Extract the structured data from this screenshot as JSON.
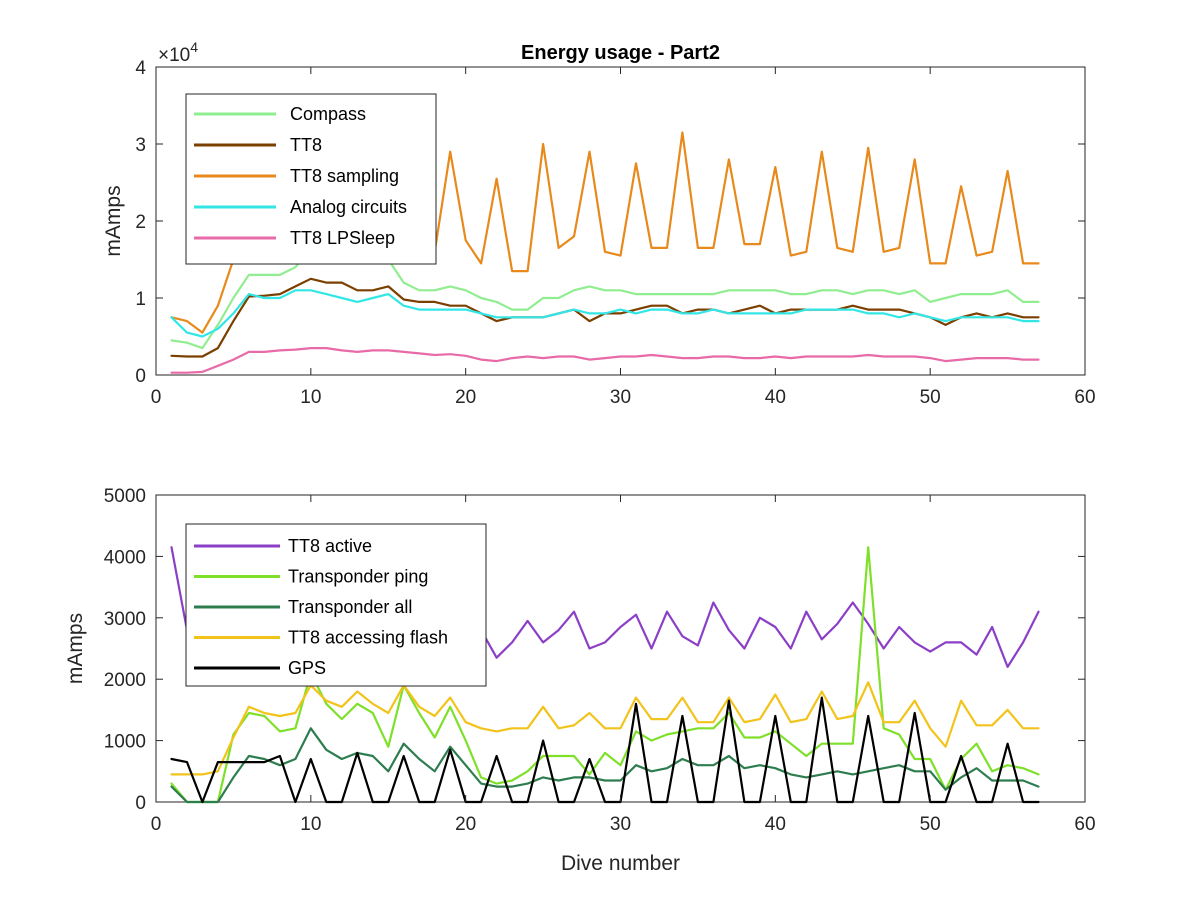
{
  "chart_data": [
    {
      "type": "line",
      "title": "Energy usage - Part2",
      "xlabel": "",
      "ylabel": "mAmps",
      "xlim": [
        0,
        60
      ],
      "ylim": [
        0,
        40000
      ],
      "x_ticks": [
        0,
        10,
        20,
        30,
        40,
        50,
        60
      ],
      "y_ticks": [
        0,
        10000,
        20000,
        30000,
        40000
      ],
      "y_tick_labels": [
        "0",
        "1",
        "2",
        "3",
        "4"
      ],
      "y_exponent_label": "×10",
      "y_exponent_power": "4",
      "legend_position": "top-left",
      "x": [
        1,
        2,
        3,
        4,
        5,
        6,
        7,
        8,
        9,
        10,
        11,
        12,
        13,
        14,
        15,
        16,
        17,
        18,
        19,
        20,
        21,
        22,
        23,
        24,
        25,
        26,
        27,
        28,
        29,
        30,
        31,
        32,
        33,
        34,
        35,
        36,
        37,
        38,
        39,
        40,
        41,
        42,
        43,
        44,
        45,
        46,
        47,
        48,
        49,
        50,
        51,
        52,
        53,
        54,
        55,
        56,
        57
      ],
      "series": [
        {
          "name": "Compass",
          "color": "#90ee90",
          "values": [
            4500,
            4200,
            3500,
            6500,
            10000,
            13000,
            13000,
            13000,
            14000,
            16500,
            15000,
            14500,
            15000,
            14500,
            15000,
            12000,
            11000,
            11000,
            11500,
            11000,
            10000,
            9500,
            8500,
            8500,
            10000,
            10000,
            11000,
            11500,
            11000,
            11000,
            10500,
            10500,
            10500,
            10500,
            10500,
            10500,
            11000,
            11000,
            11000,
            11000,
            10500,
            10500,
            11000,
            11000,
            10500,
            11000,
            11000,
            10500,
            11000,
            9500,
            10000,
            10500,
            10500,
            10500,
            11000,
            9500,
            9500
          ]
        },
        {
          "name": "TT8",
          "color": "#7b3f00",
          "values": [
            2500,
            2400,
            2400,
            3500,
            7000,
            10200,
            10300,
            10500,
            11500,
            12500,
            12000,
            12000,
            11000,
            11000,
            11500,
            9800,
            9500,
            9500,
            9000,
            9000,
            8000,
            7000,
            7500,
            7500,
            7500,
            8000,
            8500,
            7000,
            8000,
            8000,
            8500,
            9000,
            9000,
            8000,
            8500,
            8500,
            8000,
            8500,
            9000,
            8000,
            8500,
            8500,
            8500,
            8500,
            9000,
            8500,
            8500,
            8500,
            8000,
            7500,
            6500,
            7500,
            8000,
            7500,
            8000,
            7500,
            7500
          ]
        },
        {
          "name": "TT8 sampling",
          "color": "#e8891c",
          "values": [
            7500,
            7000,
            5500,
            9000,
            15000,
            19000,
            20500,
            21000,
            18500,
            20500,
            26000,
            22000,
            20500,
            24500,
            21000,
            23500,
            17000,
            16000,
            29000,
            17500,
            14500,
            25500,
            13500,
            13500,
            30000,
            16500,
            18000,
            29000,
            16000,
            15500,
            27500,
            16500,
            16500,
            31500,
            16500,
            16500,
            28000,
            17000,
            17000,
            27000,
            15500,
            16000,
            29000,
            16500,
            16000,
            29500,
            16000,
            16500,
            28000,
            14500,
            14500,
            24500,
            15500,
            16000,
            26500,
            14500,
            14500
          ]
        },
        {
          "name": "Analog circuits",
          "color": "#33e6e6",
          "values": [
            7500,
            5500,
            5000,
            6000,
            8000,
            10500,
            10000,
            10000,
            11000,
            11000,
            10500,
            10000,
            9500,
            10000,
            10500,
            9000,
            8500,
            8500,
            8500,
            8500,
            8000,
            7500,
            7500,
            7500,
            7500,
            8000,
            8500,
            8000,
            8000,
            8500,
            8000,
            8500,
            8500,
            8000,
            8000,
            8500,
            8000,
            8000,
            8000,
            8000,
            8000,
            8500,
            8500,
            8500,
            8500,
            8000,
            8000,
            7500,
            8000,
            7500,
            7000,
            7500,
            7500,
            7500,
            7500,
            7000,
            7000
          ]
        },
        {
          "name": "TT8 LPSleep",
          "color": "#e86aa8",
          "values": [
            300,
            300,
            400,
            1200,
            2000,
            3000,
            3000,
            3200,
            3300,
            3500,
            3500,
            3200,
            3000,
            3200,
            3200,
            3000,
            2800,
            2600,
            2700,
            2500,
            2000,
            1800,
            2200,
            2400,
            2200,
            2400,
            2400,
            2000,
            2200,
            2400,
            2400,
            2600,
            2400,
            2200,
            2200,
            2400,
            2400,
            2200,
            2200,
            2400,
            2200,
            2400,
            2400,
            2400,
            2400,
            2600,
            2400,
            2400,
            2400,
            2200,
            1800,
            2000,
            2200,
            2200,
            2200,
            2000,
            2000
          ]
        }
      ]
    },
    {
      "type": "line",
      "title": "",
      "xlabel": "Dive number",
      "ylabel": "mAmps",
      "xlim": [
        0,
        60
      ],
      "ylim": [
        0,
        5000
      ],
      "x_ticks": [
        0,
        10,
        20,
        30,
        40,
        50,
        60
      ],
      "y_ticks": [
        0,
        1000,
        2000,
        3000,
        4000,
        5000
      ],
      "y_tick_labels": [
        "0",
        "1000",
        "2000",
        "3000",
        "4000",
        "5000"
      ],
      "legend_position": "top-left",
      "x": [
        1,
        2,
        3,
        4,
        5,
        6,
        7,
        8,
        9,
        10,
        11,
        12,
        13,
        14,
        15,
        16,
        17,
        18,
        19,
        20,
        21,
        22,
        23,
        24,
        25,
        26,
        27,
        28,
        29,
        30,
        31,
        32,
        33,
        34,
        35,
        36,
        37,
        38,
        39,
        40,
        41,
        42,
        43,
        44,
        45,
        46,
        47,
        48,
        49,
        50,
        51,
        52,
        53,
        54,
        55,
        56,
        57
      ],
      "series": [
        {
          "name": "TT8 active",
          "color": "#8b3fc7",
          "values": [
            4150,
            2800,
            2800,
            2700,
            2700,
            2800,
            2800,
            2700,
            2800,
            2900,
            2800,
            2800,
            3000,
            2900,
            2800,
            3000,
            2800,
            2700,
            2800,
            2900,
            2800,
            2350,
            2600,
            2950,
            2600,
            2800,
            3100,
            2500,
            2600,
            2850,
            3050,
            2500,
            3100,
            2700,
            2550,
            3250,
            2800,
            2500,
            3000,
            2850,
            2500,
            3100,
            2650,
            2900,
            3250,
            2900,
            2500,
            2850,
            2600,
            2450,
            2600,
            2600,
            2400,
            2850,
            2200,
            2600,
            3100
          ]
        },
        {
          "name": "Transponder ping",
          "color": "#7fe02a",
          "values": [
            300,
            0,
            0,
            0,
            1100,
            1450,
            1400,
            1150,
            1200,
            2100,
            1600,
            1350,
            1600,
            1450,
            900,
            1900,
            1450,
            1050,
            1550,
            1000,
            400,
            300,
            350,
            500,
            750,
            750,
            750,
            450,
            800,
            600,
            1150,
            1000,
            1100,
            1150,
            1200,
            1200,
            1450,
            1050,
            1050,
            1150,
            950,
            750,
            950,
            950,
            950,
            4150,
            1200,
            1100,
            700,
            700,
            200,
            700,
            950,
            500,
            600,
            550,
            450
          ]
        },
        {
          "name": "Transponder all",
          "color": "#2e7d4f",
          "values": [
            250,
            0,
            0,
            0,
            400,
            750,
            700,
            600,
            700,
            1200,
            850,
            700,
            800,
            750,
            500,
            950,
            700,
            500,
            900,
            600,
            300,
            250,
            250,
            300,
            400,
            350,
            400,
            400,
            350,
            350,
            600,
            500,
            550,
            700,
            600,
            600,
            750,
            550,
            600,
            550,
            450,
            400,
            450,
            500,
            450,
            500,
            550,
            600,
            500,
            500,
            200,
            400,
            550,
            350,
            350,
            350,
            250
          ]
        },
        {
          "name": "TT8 accessing flash",
          "color": "#f2c31a",
          "values": [
            450,
            450,
            450,
            500,
            1050,
            1550,
            1450,
            1400,
            1450,
            1900,
            1650,
            1550,
            1800,
            1600,
            1450,
            1900,
            1550,
            1400,
            1700,
            1300,
            1200,
            1150,
            1200,
            1200,
            1550,
            1200,
            1250,
            1450,
            1200,
            1200,
            1700,
            1350,
            1350,
            1700,
            1300,
            1300,
            1700,
            1300,
            1350,
            1750,
            1300,
            1350,
            1800,
            1350,
            1400,
            1950,
            1300,
            1300,
            1650,
            1200,
            900,
            1650,
            1250,
            1250,
            1500,
            1200,
            1200
          ]
        },
        {
          "name": "GPS",
          "color": "#000000",
          "values": [
            700,
            650,
            0,
            650,
            650,
            650,
            650,
            750,
            0,
            700,
            0,
            0,
            800,
            0,
            0,
            750,
            0,
            0,
            850,
            0,
            0,
            750,
            0,
            0,
            1000,
            0,
            0,
            700,
            0,
            0,
            1600,
            0,
            0,
            1400,
            0,
            0,
            1650,
            0,
            0,
            1400,
            0,
            0,
            1700,
            0,
            0,
            1400,
            0,
            0,
            1450,
            0,
            0,
            750,
            0,
            0,
            950,
            0,
            0
          ]
        }
      ]
    }
  ]
}
